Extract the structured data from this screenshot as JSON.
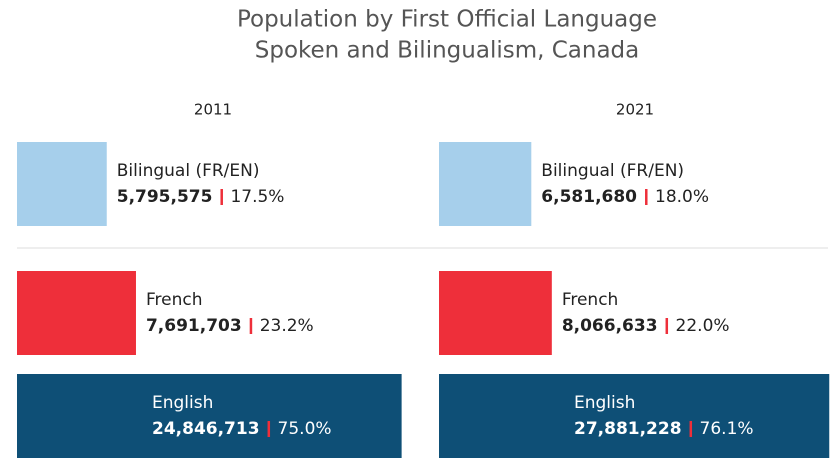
{
  "title": [
    "Population by First Official Language",
    "Spoken and Bilingualism, Canada"
  ],
  "chart_data": [
    {
      "type": "bar",
      "title": "2011",
      "categories": [
        "Bilingual (FR/EN)",
        "French",
        "English"
      ],
      "values": [
        17.5,
        23.2,
        75.0
      ],
      "value_labels": [
        "17.5%",
        "23.2%",
        "75.0%"
      ],
      "counts": [
        5795575,
        7691703,
        24846713
      ],
      "count_labels": [
        "5,795,575",
        "7,691,703",
        "24,846,713"
      ],
      "colors": [
        "#a6cfeb",
        "#ee2f3a",
        "#0e4f76"
      ],
      "xlim": [
        0,
        78
      ]
    },
    {
      "type": "bar",
      "title": "2021",
      "categories": [
        "Bilingual (FR/EN)",
        "French",
        "English"
      ],
      "values": [
        18.0,
        22.0,
        76.1
      ],
      "value_labels": [
        "18.0%",
        "22.0%",
        "76.1%"
      ],
      "counts": [
        6581680,
        8066633,
        27881228
      ],
      "count_labels": [
        "6,581,680",
        "8,066,633",
        "27,881,228"
      ],
      "colors": [
        "#a6cfeb",
        "#ee2f3a",
        "#0e4f76"
      ],
      "xlim": [
        0,
        78
      ]
    }
  ]
}
